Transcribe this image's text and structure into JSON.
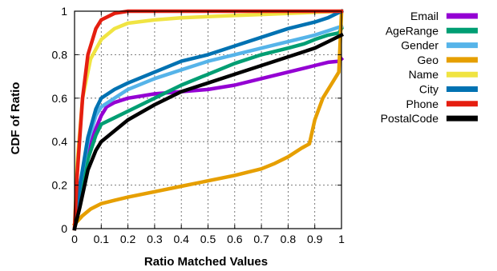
{
  "chart_data": {
    "type": "line",
    "title": "",
    "xlabel": "Ratio Matched Values",
    "ylabel": "CDF of Ratio",
    "xlim": [
      0,
      1
    ],
    "ylim": [
      0,
      1
    ],
    "x_ticks": [
      0,
      0.1,
      0.2,
      0.3,
      0.4,
      0.5,
      0.6,
      0.7,
      0.8,
      0.9,
      1
    ],
    "x_tick_labels": [
      "0",
      "0.1",
      "0.2",
      "0.3",
      "0.4",
      "0.5",
      "0.6",
      "0.7",
      "0.8",
      "0.9",
      "1"
    ],
    "y_ticks": [
      0,
      0.2,
      0.4,
      0.6,
      0.8,
      1
    ],
    "y_tick_labels": [
      "0",
      "0.2",
      "0.4",
      "0.6",
      "0.8",
      "1"
    ],
    "grid": true,
    "legend_position": "right",
    "series": [
      {
        "name": "Email",
        "color": "#9400d3",
        "points": [
          [
            0,
            0
          ],
          [
            0.02,
            0.18
          ],
          [
            0.05,
            0.36
          ],
          [
            0.08,
            0.46
          ],
          [
            0.1,
            0.52
          ],
          [
            0.12,
            0.56
          ],
          [
            0.15,
            0.58
          ],
          [
            0.2,
            0.6
          ],
          [
            0.25,
            0.61
          ],
          [
            0.3,
            0.62
          ],
          [
            0.4,
            0.63
          ],
          [
            0.5,
            0.64
          ],
          [
            0.6,
            0.66
          ],
          [
            0.7,
            0.69
          ],
          [
            0.8,
            0.72
          ],
          [
            0.9,
            0.75
          ],
          [
            0.95,
            0.765
          ],
          [
            0.99,
            0.77
          ],
          [
            1,
            0.78
          ]
        ]
      },
      {
        "name": "AgeRange",
        "color": "#009e73",
        "points": [
          [
            0,
            0
          ],
          [
            0.02,
            0.16
          ],
          [
            0.05,
            0.32
          ],
          [
            0.08,
            0.43
          ],
          [
            0.1,
            0.48
          ],
          [
            0.15,
            0.51
          ],
          [
            0.2,
            0.54
          ],
          [
            0.3,
            0.6
          ],
          [
            0.4,
            0.66
          ],
          [
            0.5,
            0.71
          ],
          [
            0.6,
            0.76
          ],
          [
            0.7,
            0.8
          ],
          [
            0.8,
            0.83
          ],
          [
            0.86,
            0.85
          ],
          [
            0.9,
            0.87
          ],
          [
            0.95,
            0.89
          ],
          [
            0.99,
            0.9
          ],
          [
            1,
            0.92
          ]
        ]
      },
      {
        "name": "Gender",
        "color": "#56b4e9",
        "points": [
          [
            0,
            0
          ],
          [
            0.02,
            0.2
          ],
          [
            0.05,
            0.4
          ],
          [
            0.08,
            0.52
          ],
          [
            0.1,
            0.56
          ],
          [
            0.15,
            0.6
          ],
          [
            0.2,
            0.64
          ],
          [
            0.3,
            0.69
          ],
          [
            0.4,
            0.73
          ],
          [
            0.5,
            0.77
          ],
          [
            0.6,
            0.8
          ],
          [
            0.7,
            0.83
          ],
          [
            0.8,
            0.86
          ],
          [
            0.9,
            0.89
          ],
          [
            0.95,
            0.91
          ],
          [
            1,
            0.93
          ]
        ]
      },
      {
        "name": "Geo",
        "color": "#e69f00",
        "points": [
          [
            0,
            0.02
          ],
          [
            0.03,
            0.06
          ],
          [
            0.06,
            0.09
          ],
          [
            0.1,
            0.115
          ],
          [
            0.15,
            0.13
          ],
          [
            0.2,
            0.145
          ],
          [
            0.3,
            0.17
          ],
          [
            0.4,
            0.195
          ],
          [
            0.5,
            0.22
          ],
          [
            0.6,
            0.245
          ],
          [
            0.7,
            0.275
          ],
          [
            0.75,
            0.3
          ],
          [
            0.8,
            0.33
          ],
          [
            0.85,
            0.37
          ],
          [
            0.88,
            0.39
          ],
          [
            0.9,
            0.5
          ],
          [
            0.93,
            0.6
          ],
          [
            0.96,
            0.66
          ],
          [
            0.99,
            0.72
          ],
          [
            1,
            0.99
          ]
        ]
      },
      {
        "name": "Name",
        "color": "#f0e442",
        "points": [
          [
            0,
            0
          ],
          [
            0.01,
            0.3
          ],
          [
            0.03,
            0.6
          ],
          [
            0.06,
            0.78
          ],
          [
            0.1,
            0.87
          ],
          [
            0.15,
            0.92
          ],
          [
            0.2,
            0.945
          ],
          [
            0.3,
            0.96
          ],
          [
            0.4,
            0.97
          ],
          [
            0.5,
            0.975
          ],
          [
            0.6,
            0.98
          ],
          [
            0.7,
            0.985
          ],
          [
            0.8,
            0.99
          ],
          [
            0.9,
            0.995
          ],
          [
            1,
            1
          ]
        ]
      },
      {
        "name": "City",
        "color": "#0072b2",
        "points": [
          [
            0,
            0
          ],
          [
            0.02,
            0.2
          ],
          [
            0.05,
            0.42
          ],
          [
            0.08,
            0.55
          ],
          [
            0.1,
            0.6
          ],
          [
            0.15,
            0.64
          ],
          [
            0.2,
            0.67
          ],
          [
            0.3,
            0.72
          ],
          [
            0.4,
            0.77
          ],
          [
            0.5,
            0.8
          ],
          [
            0.6,
            0.84
          ],
          [
            0.7,
            0.88
          ],
          [
            0.8,
            0.92
          ],
          [
            0.9,
            0.95
          ],
          [
            0.95,
            0.97
          ],
          [
            1,
            1
          ]
        ]
      },
      {
        "name": "Phone",
        "color": "#e51e10",
        "points": [
          [
            0,
            0
          ],
          [
            0.01,
            0.25
          ],
          [
            0.03,
            0.6
          ],
          [
            0.05,
            0.8
          ],
          [
            0.08,
            0.92
          ],
          [
            0.1,
            0.96
          ],
          [
            0.15,
            0.99
          ],
          [
            0.2,
            1
          ],
          [
            1,
            1
          ]
        ]
      },
      {
        "name": "PostalCode",
        "color": "#000000",
        "points": [
          [
            0,
            0
          ],
          [
            0.02,
            0.1
          ],
          [
            0.05,
            0.27
          ],
          [
            0.08,
            0.36
          ],
          [
            0.1,
            0.4
          ],
          [
            0.15,
            0.45
          ],
          [
            0.2,
            0.5
          ],
          [
            0.3,
            0.57
          ],
          [
            0.4,
            0.63
          ],
          [
            0.5,
            0.67
          ],
          [
            0.6,
            0.71
          ],
          [
            0.7,
            0.75
          ],
          [
            0.8,
            0.79
          ],
          [
            0.9,
            0.83
          ],
          [
            0.95,
            0.86
          ],
          [
            1,
            0.89
          ]
        ]
      }
    ]
  }
}
